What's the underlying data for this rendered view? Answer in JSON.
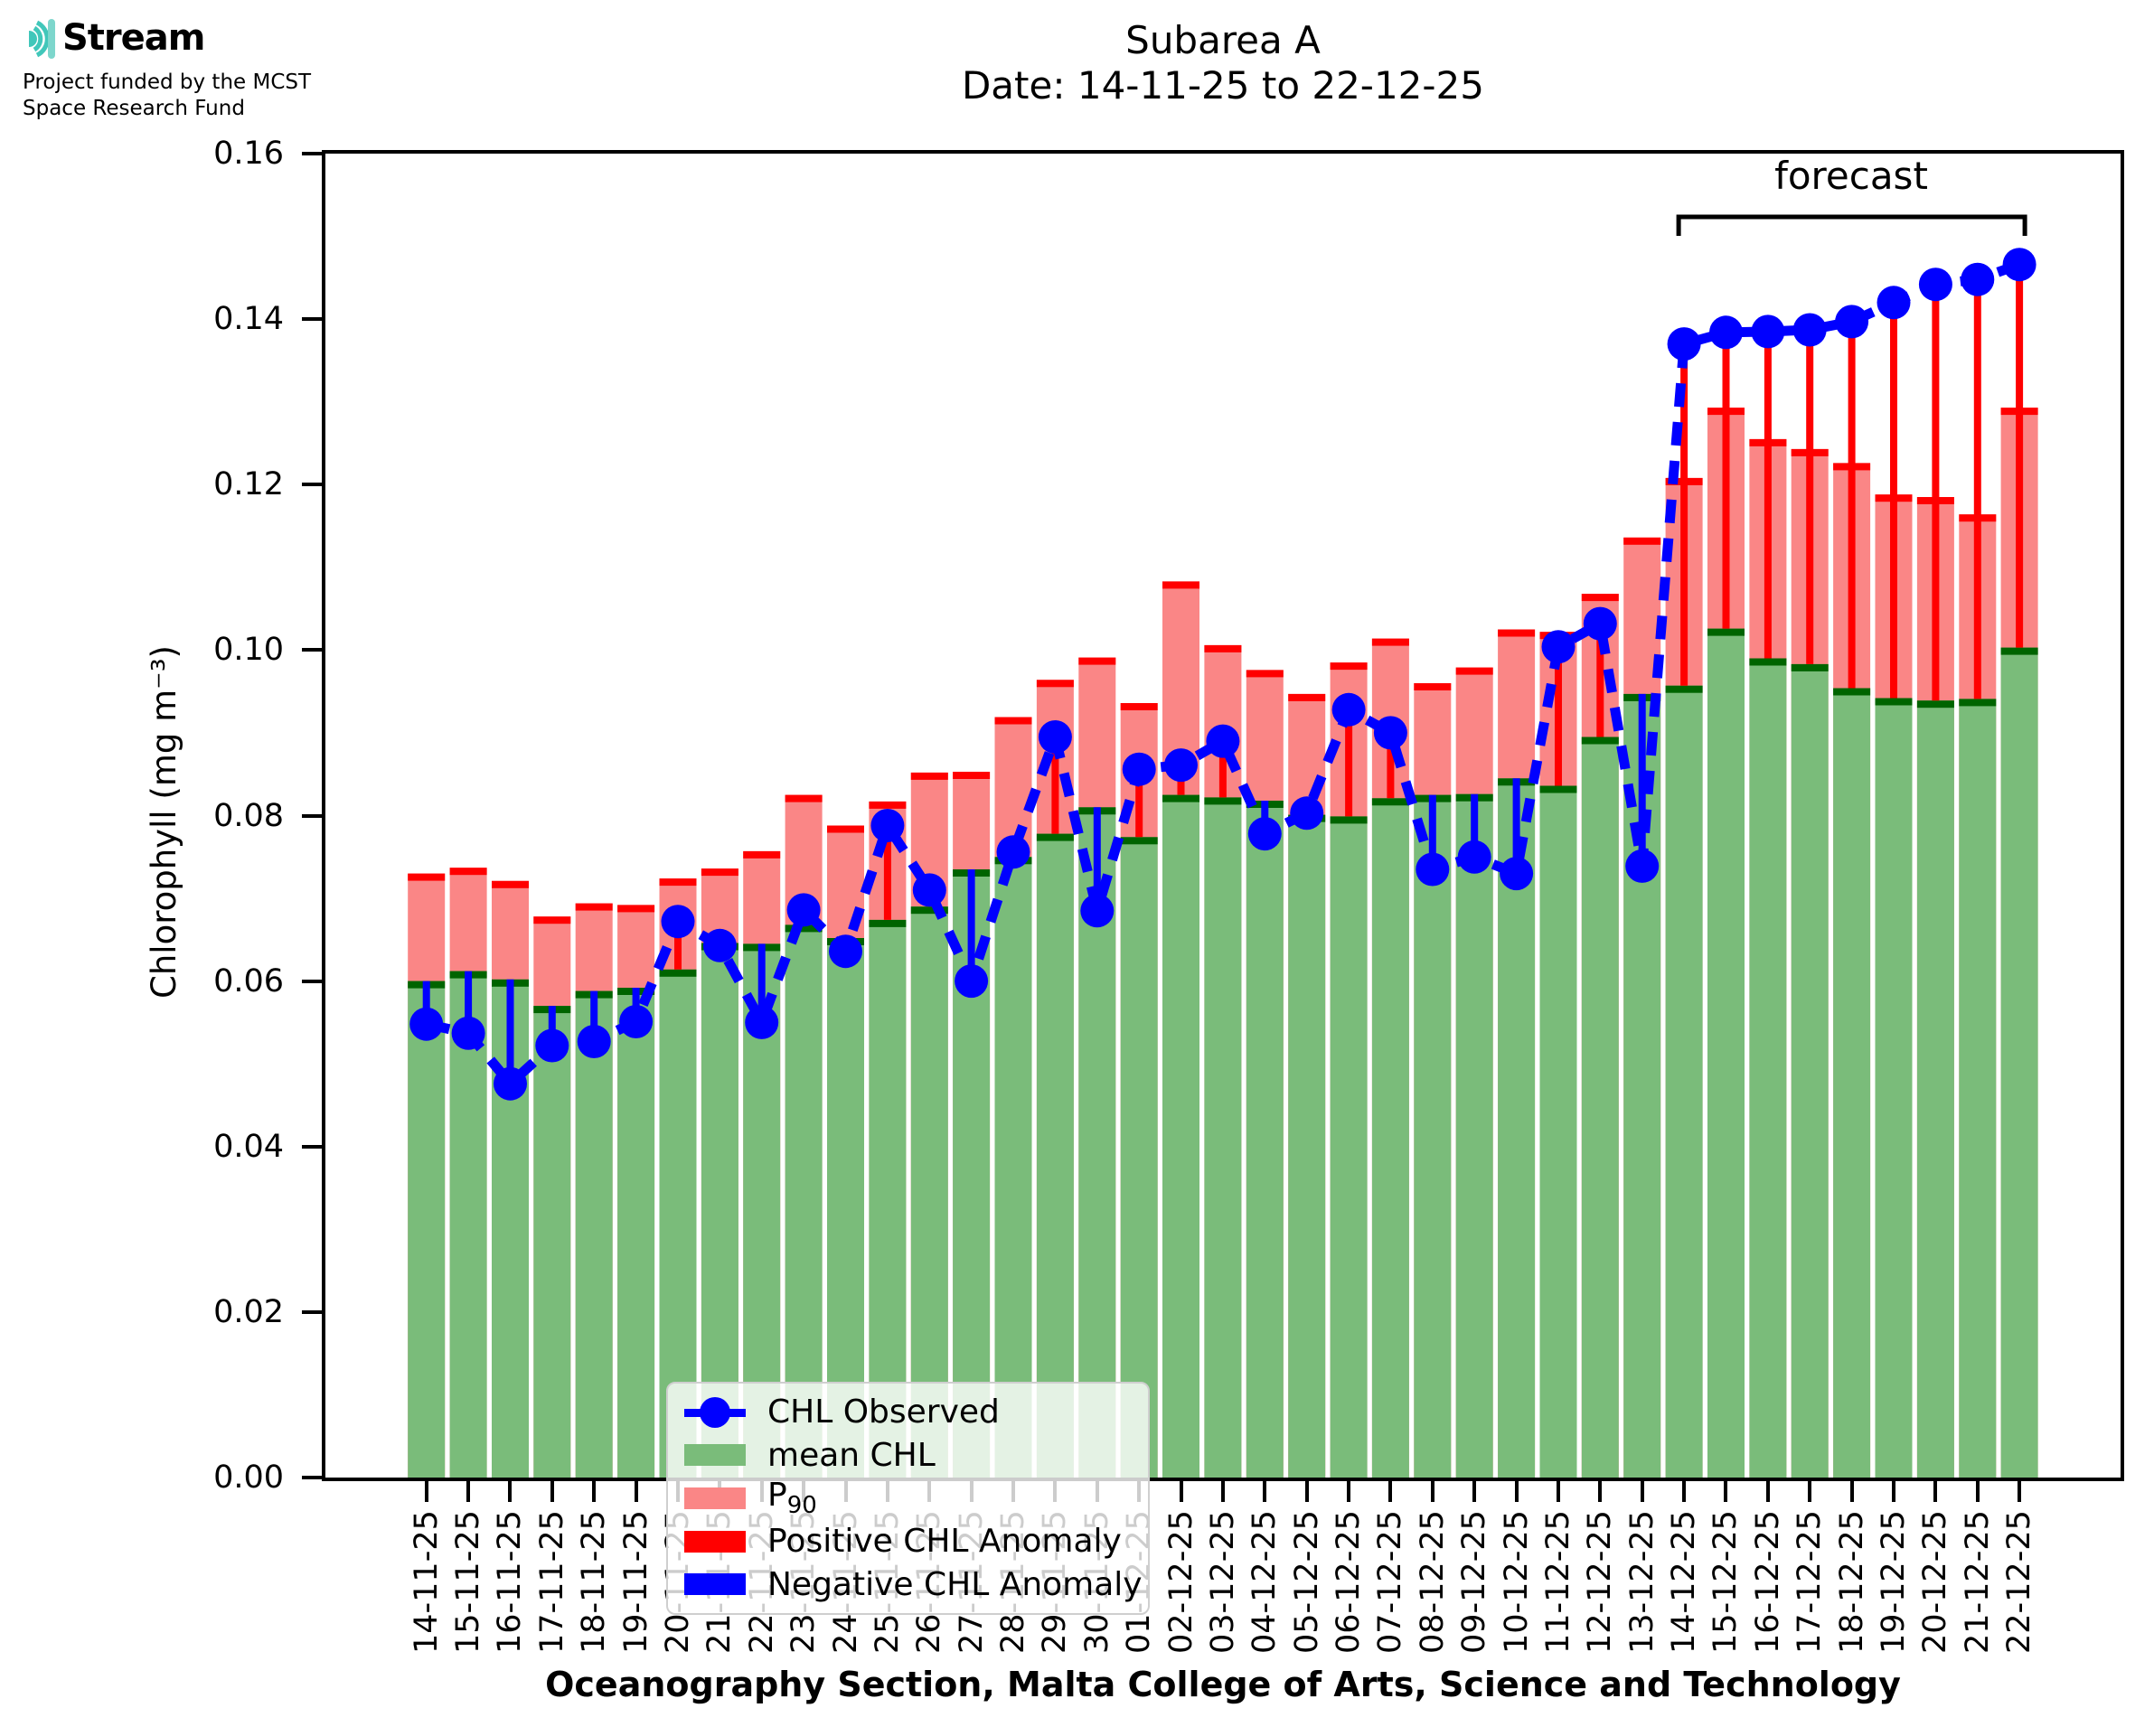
{
  "logo": {
    "brand": "Stream",
    "subtitle_line1": "Project funded by the MCST",
    "subtitle_line2": "Space Research Fund",
    "accent_color": "#41c7ba",
    "accent_light": "#7dd6cc"
  },
  "header": {
    "title_line1": "Subarea A",
    "title_line2": "Date: 14-11-25 to 22-12-25"
  },
  "forecast": {
    "label": "forecast",
    "start_category": "14-12-25",
    "end_category": "22-12-25"
  },
  "axis": {
    "ylabel": "Chlorophyll (mg m⁻³)",
    "xlabel": "Oceanography Section, Malta College of Arts, Science and Technology",
    "ytick_labels": [
      "0.00",
      "0.02",
      "0.04",
      "0.06",
      "0.08",
      "0.10",
      "0.12",
      "0.14",
      "0.16"
    ]
  },
  "legend": {
    "items": [
      {
        "label": "CHL Observed",
        "marker": "line-dot",
        "color": "#0000ff"
      },
      {
        "label": "mean CHL",
        "marker": "patch",
        "color": "#7abc7a"
      },
      {
        "label": "P",
        "sub": "90",
        "marker": "patch",
        "color": "#fa8686"
      },
      {
        "label": "Positive CHL Anomaly",
        "marker": "patch",
        "color": "#ff0000"
      },
      {
        "label": "Negative CHL Anomaly",
        "marker": "patch",
        "color": "#0000ff"
      }
    ]
  },
  "chart_data": {
    "type": "bar",
    "title": "Subarea A",
    "subtitle": "Date: 14-11-25 to 22-12-25",
    "xlabel": "Oceanography Section, Malta College of Arts, Science and Technology",
    "ylabel": "Chlorophyll (mg m⁻³)",
    "ylim": [
      0,
      0.16
    ],
    "yticks": [
      0,
      0.02,
      0.04,
      0.06,
      0.08,
      0.1,
      0.12,
      0.14,
      0.16
    ],
    "grid": false,
    "legend_position": "lower left",
    "categories": [
      "14-11-25",
      "15-11-25",
      "16-11-25",
      "17-11-25",
      "18-11-25",
      "19-11-25",
      "20-11-25",
      "21-11-25",
      "22-11-25",
      "23-11-25",
      "24-11-25",
      "25-11-25",
      "26-11-25",
      "27-11-25",
      "28-11-25",
      "29-11-25",
      "30-11-25",
      "01-12-25",
      "02-12-25",
      "03-12-25",
      "04-12-25",
      "05-12-25",
      "06-12-25",
      "07-12-25",
      "08-12-25",
      "09-12-25",
      "10-12-25",
      "11-12-25",
      "12-12-25",
      "13-12-25",
      "14-12-25",
      "15-12-25",
      "16-12-25",
      "17-12-25",
      "18-12-25",
      "19-12-25",
      "20-12-25",
      "21-12-25",
      "22-12-25"
    ],
    "series": [
      {
        "name": "mean CHL",
        "type": "bar",
        "color": "#7abc7a",
        "cap_color": "#006400",
        "values": [
          0.06,
          0.0612,
          0.0602,
          0.057,
          0.0588,
          0.0592,
          0.0614,
          0.0646,
          0.0645,
          0.0668,
          0.0652,
          0.0674,
          0.069,
          0.0735,
          0.075,
          0.0778,
          0.081,
          0.0774,
          0.0825,
          0.0822,
          0.0818,
          0.0801,
          0.0799,
          0.0821,
          0.0825,
          0.0826,
          0.0845,
          0.0836,
          0.0895,
          0.0947,
          0.0957,
          0.1026,
          0.099,
          0.0983,
          0.0954,
          0.0942,
          0.0939,
          0.0941,
          0.1003
        ]
      },
      {
        "name": "P90",
        "type": "bar",
        "color": "#fa8686",
        "cap_color": "#ff0000",
        "values": [
          0.073,
          0.0737,
          0.0721,
          0.0678,
          0.0694,
          0.0692,
          0.0724,
          0.0736,
          0.0757,
          0.0825,
          0.0788,
          0.0817,
          0.0852,
          0.0853,
          0.0919,
          0.0964,
          0.0991,
          0.0936,
          0.1083,
          0.1006,
          0.0976,
          0.0947,
          0.0985,
          0.1014,
          0.096,
          0.0979,
          0.1025,
          0.1022,
          0.1068,
          0.1136,
          0.1208,
          0.1293,
          0.1255,
          0.1243,
          0.1226,
          0.1188,
          0.1185,
          0.1164,
          0.1293
        ]
      },
      {
        "name": "CHL Observed",
        "type": "line",
        "color": "#0000ff",
        "values": [
          0.0548,
          0.0537,
          0.0476,
          0.0522,
          0.0527,
          0.0551,
          0.0672,
          0.0643,
          0.055,
          0.0686,
          0.0636,
          0.0788,
          0.071,
          0.06,
          0.0756,
          0.0895,
          0.0685,
          0.0856,
          0.0861,
          0.089,
          0.0778,
          0.0803,
          0.0928,
          0.09,
          0.0735,
          0.075,
          0.073,
          0.1004,
          0.1032,
          0.0739,
          0.137,
          0.1384,
          0.1385,
          0.1387,
          0.1397,
          0.142,
          0.1442,
          0.1448,
          0.1466
        ]
      }
    ],
    "anomalies": {
      "positive": {
        "color": "#ff0000",
        "meaning": "observed above mean CHL"
      },
      "negative": {
        "color": "#0000ff",
        "meaning": "observed below mean CHL"
      }
    }
  }
}
